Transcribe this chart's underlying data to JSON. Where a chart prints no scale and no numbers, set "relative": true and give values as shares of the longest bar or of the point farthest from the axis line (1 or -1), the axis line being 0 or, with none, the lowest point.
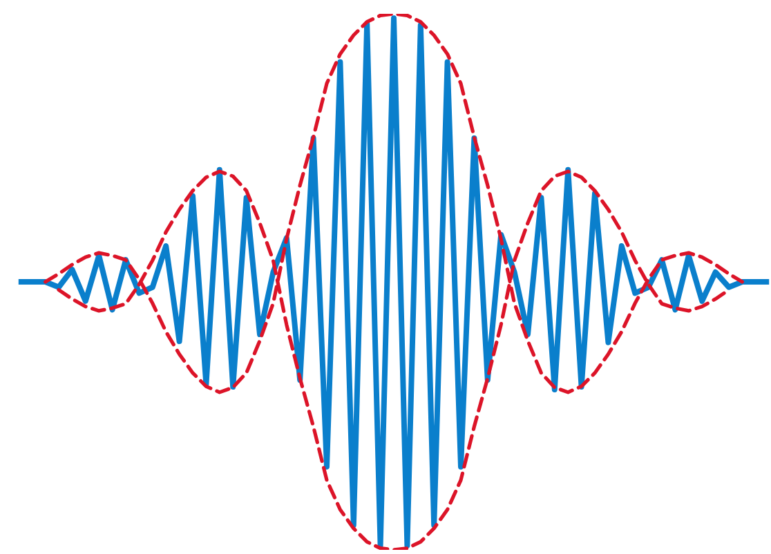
{
  "chart_data": {
    "type": "line",
    "relative": true,
    "marker": "none",
    "categories": [
      null,
      null,
      null,
      null,
      null,
      null,
      null,
      null,
      null,
      null,
      null,
      null,
      null,
      null,
      null,
      null,
      null,
      null,
      null,
      null,
      null,
      null,
      null,
      null,
      null,
      null,
      null,
      null,
      null,
      null,
      null,
      null,
      null,
      null,
      null,
      null,
      null,
      null,
      null,
      null,
      null,
      null,
      null,
      null,
      null,
      null,
      null,
      null,
      null,
      null,
      null,
      null,
      null,
      null,
      null,
      null,
      null
    ],
    "series": [
      {
        "color": "#0a7fcc",
        "line_style": "solid",
        "values": [
          0.5,
          0.5,
          0.5,
          0.49,
          0.523,
          0.464,
          0.549,
          0.448,
          0.541,
          0.479,
          0.49,
          0.567,
          0.389,
          0.66,
          0.309,
          0.709,
          0.304,
          0.657,
          0.402,
          0.518,
          0.582,
          0.317,
          0.768,
          0.155,
          0.91,
          0.046,
          0.982,
          0.008,
          0.992,
          0.008,
          0.979,
          0.046,
          0.91,
          0.155,
          0.768,
          0.317,
          0.588,
          0.518,
          0.402,
          0.657,
          0.299,
          0.709,
          0.304,
          0.665,
          0.387,
          0.567,
          0.479,
          0.49,
          0.541,
          0.448,
          0.549,
          0.464,
          0.518,
          0.49,
          0.5,
          0.5,
          0.5
        ]
      },
      {
        "color": "#dc1428",
        "line_style": "dashed",
        "values": [
          null,
          null,
          0.5,
          0.515,
          0.532,
          0.546,
          0.554,
          0.549,
          0.541,
          0.505,
          0.46,
          0.407,
          0.365,
          0.33,
          0.305,
          0.294,
          0.303,
          0.33,
          0.39,
          0.46,
          0.58,
          0.68,
          0.77,
          0.87,
          0.925,
          0.96,
          0.985,
          0.997,
          1.0,
          0.997,
          0.985,
          0.96,
          0.925,
          0.87,
          0.77,
          0.68,
          0.58,
          0.46,
          0.39,
          0.33,
          0.303,
          0.294,
          0.305,
          0.33,
          0.365,
          0.407,
          0.46,
          0.505,
          0.541,
          0.549,
          0.554,
          0.546,
          0.532,
          0.515,
          0.5,
          null,
          null
        ]
      },
      {
        "color": "#dc1428",
        "line_style": "dashed",
        "values": [
          null,
          null,
          null,
          0.485,
          0.468,
          0.454,
          0.446,
          0.451,
          0.459,
          0.495,
          0.54,
          0.593,
          0.635,
          0.67,
          0.695,
          0.706,
          0.697,
          0.67,
          0.61,
          0.54,
          0.42,
          0.32,
          0.23,
          0.13,
          0.075,
          0.04,
          0.015,
          0.003,
          0,
          0.003,
          0.015,
          0.04,
          0.075,
          0.13,
          0.23,
          0.32,
          0.42,
          0.54,
          0.61,
          0.67,
          0.697,
          0.706,
          0.695,
          0.67,
          0.635,
          0.593,
          0.54,
          0.495,
          0.459,
          0.451,
          0.446,
          0.454,
          0.468,
          0.485,
          null,
          null,
          null
        ]
      }
    ]
  }
}
